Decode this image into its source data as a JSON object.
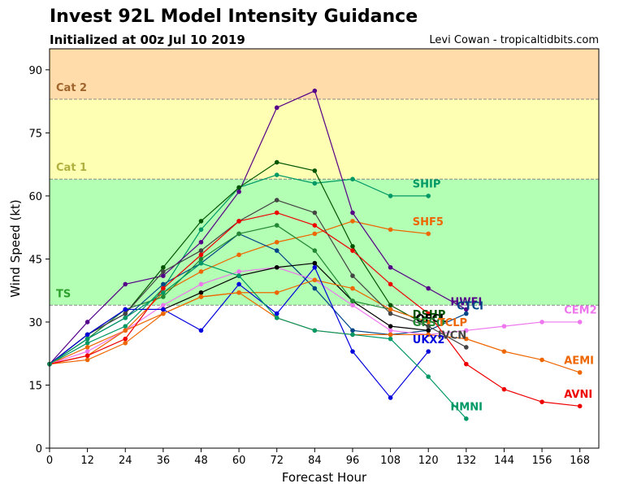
{
  "header": {
    "title": "Invest 92L Model Intensity Guidance",
    "subtitle": "Initialized at 00z Jul 10 2019",
    "credit": "Levi Cowan - tropicaltidbits.com"
  },
  "chart_data": {
    "type": "line",
    "xlabel": "Forecast Hour",
    "ylabel": "Wind Speed (kt)",
    "xlim": [
      0,
      174
    ],
    "ylim": [
      0,
      95
    ],
    "xticks": [
      0,
      12,
      24,
      36,
      48,
      60,
      72,
      84,
      96,
      108,
      120,
      132,
      144,
      156,
      168
    ],
    "yticks": [
      0,
      15,
      30,
      45,
      60,
      75,
      90
    ],
    "grid": false,
    "bands": [
      {
        "name": "TS",
        "from": 34,
        "to": 64,
        "color": "#b3ffb3",
        "label_color": "#2ca02c"
      },
      {
        "name": "Cat 1",
        "from": 64,
        "to": 83,
        "color": "#ffffb3",
        "label_color": "#b0b040"
      },
      {
        "name": "Cat 2",
        "from": 83,
        "to": 95,
        "color": "#ffdcaa",
        "label_color": "#a0642d"
      }
    ],
    "series": [
      {
        "name": "SHIP",
        "color": "#009966",
        "label_x": 115,
        "label_y": 62,
        "points": [
          [
            0,
            20
          ],
          [
            12,
            25
          ],
          [
            24,
            29
          ],
          [
            36,
            38
          ],
          [
            48,
            52
          ],
          [
            60,
            62
          ],
          [
            72,
            65
          ],
          [
            84,
            63
          ],
          [
            96,
            64
          ],
          [
            108,
            60
          ],
          [
            120,
            60
          ]
        ]
      },
      {
        "name": "SHF5",
        "color": "#ee6600",
        "label_x": 115,
        "label_y": 53,
        "points": [
          [
            0,
            20
          ],
          [
            12,
            24
          ],
          [
            24,
            28
          ],
          [
            36,
            37
          ],
          [
            48,
            42
          ],
          [
            60,
            46
          ],
          [
            72,
            49
          ],
          [
            84,
            51
          ],
          [
            96,
            54
          ],
          [
            108,
            52
          ],
          [
            120,
            51
          ]
        ]
      },
      {
        "name": "HWFI",
        "color": "#550088",
        "label_x": 127,
        "label_y": 34,
        "points": [
          [
            0,
            20
          ],
          [
            12,
            30
          ],
          [
            24,
            39
          ],
          [
            36,
            41
          ],
          [
            48,
            49
          ],
          [
            60,
            61
          ],
          [
            72,
            81
          ],
          [
            84,
            85
          ],
          [
            96,
            56
          ],
          [
            108,
            43
          ],
          [
            120,
            38
          ],
          [
            132,
            33
          ]
        ]
      },
      {
        "name": "CTCI",
        "color": "#004488",
        "label_x": 129,
        "label_y": 33,
        "points": [
          [
            0,
            20
          ],
          [
            12,
            26
          ],
          [
            24,
            31
          ],
          [
            36,
            39
          ],
          [
            48,
            44
          ],
          [
            60,
            51
          ],
          [
            72,
            47
          ],
          [
            84,
            38
          ],
          [
            96,
            28
          ],
          [
            108,
            27
          ],
          [
            120,
            28
          ],
          [
            132,
            32
          ]
        ]
      },
      {
        "name": "CEM2",
        "color": "#ee77ee",
        "label_x": 163,
        "label_y": 32,
        "points": [
          [
            0,
            20
          ],
          [
            12,
            23
          ],
          [
            24,
            28
          ],
          [
            36,
            34
          ],
          [
            48,
            39
          ],
          [
            60,
            42
          ],
          [
            72,
            43
          ],
          [
            84,
            40
          ],
          [
            96,
            34
          ],
          [
            108,
            28
          ],
          [
            120,
            27
          ],
          [
            132,
            28
          ],
          [
            144,
            29
          ],
          [
            156,
            30
          ],
          [
            168,
            30
          ]
        ]
      },
      {
        "name": "DSHP",
        "color": "#005500",
        "label_x": 115,
        "label_y": 31,
        "points": [
          [
            0,
            20
          ],
          [
            12,
            27
          ],
          [
            24,
            32
          ],
          [
            36,
            43
          ],
          [
            48,
            54
          ],
          [
            60,
            62
          ],
          [
            72,
            68
          ],
          [
            84,
            66
          ],
          [
            96,
            48
          ],
          [
            108,
            34
          ],
          [
            120,
            29
          ]
        ]
      },
      {
        "name": "OFCL",
        "color": "#000000",
        "label_x": 116,
        "label_y": 30,
        "points": [
          [
            0,
            20
          ],
          [
            12,
            27
          ],
          [
            24,
            33
          ],
          [
            36,
            33
          ],
          [
            48,
            37
          ],
          [
            60,
            41
          ],
          [
            72,
            43
          ],
          [
            84,
            44
          ],
          [
            96,
            35
          ],
          [
            108,
            29
          ],
          [
            120,
            28
          ]
        ]
      },
      {
        "name": "GFSO",
        "color": "#228833",
        "label_x": 115,
        "label_y": 29,
        "points": [
          [
            0,
            20
          ],
          [
            12,
            26
          ],
          [
            24,
            33
          ],
          [
            36,
            36
          ],
          [
            48,
            45
          ],
          [
            60,
            51
          ],
          [
            72,
            53
          ],
          [
            84,
            47
          ],
          [
            96,
            35
          ],
          [
            108,
            33
          ],
          [
            120,
            30
          ]
        ]
      },
      {
        "name": "TCLP",
        "color": "#ee6600",
        "label_x": 123,
        "label_y": 29,
        "points": [
          [
            0,
            20
          ],
          [
            12,
            21
          ],
          [
            24,
            25
          ],
          [
            36,
            32
          ],
          [
            48,
            36
          ],
          [
            60,
            37
          ],
          [
            72,
            37
          ],
          [
            84,
            40
          ],
          [
            96,
            38
          ],
          [
            108,
            33
          ],
          [
            120,
            30
          ]
        ]
      },
      {
        "name": "IVCN",
        "color": "#444444",
        "label_x": 123,
        "label_y": 26,
        "points": [
          [
            0,
            20
          ],
          [
            12,
            27
          ],
          [
            24,
            32
          ],
          [
            36,
            42
          ],
          [
            48,
            47
          ],
          [
            60,
            54
          ],
          [
            72,
            59
          ],
          [
            84,
            56
          ],
          [
            96,
            41
          ],
          [
            108,
            32
          ],
          [
            120,
            29
          ],
          [
            132,
            24
          ]
        ]
      },
      {
        "name": "UKX2",
        "color": "#0000dd",
        "label_x": 115,
        "label_y": 25,
        "points": [
          [
            0,
            20
          ],
          [
            12,
            27
          ],
          [
            24,
            33
          ],
          [
            36,
            33
          ],
          [
            48,
            28
          ],
          [
            60,
            39
          ],
          [
            72,
            32
          ],
          [
            84,
            43
          ],
          [
            96,
            23
          ],
          [
            108,
            12
          ],
          [
            120,
            23
          ]
        ]
      },
      {
        "name": "AEMI",
        "color": "#ee6600",
        "label_x": 163,
        "label_y": 20,
        "points": [
          [
            0,
            20
          ],
          [
            12,
            22
          ],
          [
            24,
            28
          ],
          [
            36,
            32
          ],
          [
            48,
            36
          ],
          [
            60,
            37
          ],
          [
            72,
            31
          ],
          [
            84,
            28
          ],
          [
            96,
            27
          ],
          [
            108,
            27
          ],
          [
            120,
            27
          ],
          [
            132,
            26
          ],
          [
            144,
            23
          ],
          [
            156,
            21
          ],
          [
            168,
            18
          ]
        ]
      },
      {
        "name": "AVNI",
        "color": "#ee0000",
        "label_x": 163,
        "label_y": 12,
        "points": [
          [
            0,
            20
          ],
          [
            12,
            22
          ],
          [
            24,
            26
          ],
          [
            36,
            38
          ],
          [
            48,
            46
          ],
          [
            60,
            54
          ],
          [
            72,
            56
          ],
          [
            84,
            53
          ],
          [
            96,
            47
          ],
          [
            108,
            39
          ],
          [
            120,
            32
          ],
          [
            132,
            20
          ],
          [
            144,
            14
          ],
          [
            156,
            11
          ],
          [
            168,
            10
          ]
        ]
      },
      {
        "name": "HMNI",
        "color": "#009966",
        "label_x": 127,
        "label_y": 9,
        "points": [
          [
            0,
            20
          ],
          [
            12,
            26
          ],
          [
            24,
            31
          ],
          [
            36,
            37
          ],
          [
            48,
            44
          ],
          [
            60,
            41
          ],
          [
            72,
            31
          ],
          [
            84,
            28
          ],
          [
            96,
            27
          ],
          [
            108,
            26
          ],
          [
            120,
            17
          ],
          [
            132,
            7
          ]
        ]
      }
    ]
  }
}
